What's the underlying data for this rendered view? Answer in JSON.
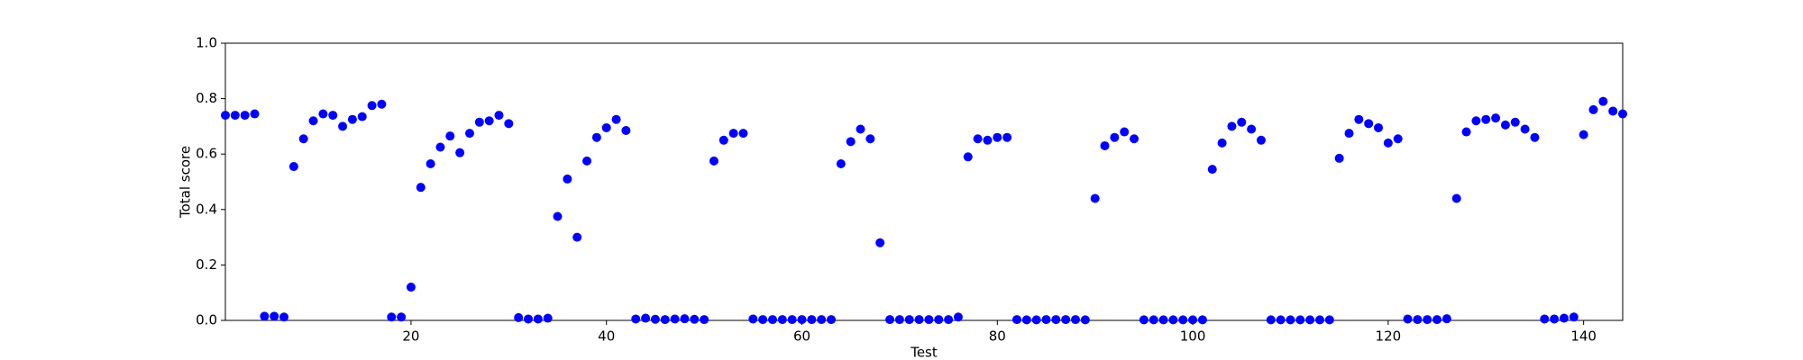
{
  "chart_data": {
    "type": "scatter",
    "x_label": "Test",
    "y_label": "Total score",
    "x": [
      1,
      2,
      3,
      4,
      5,
      6,
      7,
      8,
      9,
      10,
      11,
      12,
      13,
      14,
      15,
      16,
      17,
      18,
      19,
      20,
      21,
      22,
      23,
      24,
      25,
      26,
      27,
      28,
      29,
      30,
      31,
      32,
      33,
      34,
      35,
      36,
      37,
      38,
      39,
      40,
      41,
      42,
      43,
      44,
      45,
      46,
      47,
      48,
      49,
      50,
      51,
      52,
      53,
      54,
      55,
      56,
      57,
      58,
      59,
      60,
      61,
      62,
      63,
      64,
      65,
      66,
      67,
      68,
      69,
      70,
      71,
      72,
      73,
      74,
      75,
      76,
      77,
      78,
      79,
      80,
      81,
      82,
      83,
      84,
      85,
      86,
      87,
      88,
      89,
      90,
      91,
      92,
      93,
      94,
      95,
      96,
      97,
      98,
      99,
      100,
      101,
      102,
      103,
      104,
      105,
      106,
      107,
      108,
      109,
      110,
      111,
      112,
      113,
      114,
      115,
      116,
      117,
      118,
      119,
      120,
      121,
      122,
      123,
      124,
      125,
      126,
      127,
      128,
      129,
      130,
      131,
      132,
      133,
      134,
      135,
      136,
      137,
      138,
      139,
      140,
      141,
      142,
      143,
      144
    ],
    "values": [
      0.74,
      0.74,
      0.74,
      0.745,
      0.015,
      0.015,
      0.012,
      0.555,
      0.655,
      0.72,
      0.745,
      0.74,
      0.7,
      0.725,
      0.735,
      0.775,
      0.78,
      0.012,
      0.012,
      0.12,
      0.48,
      0.565,
      0.625,
      0.665,
      0.605,
      0.675,
      0.715,
      0.72,
      0.74,
      0.71,
      0.01,
      0.005,
      0.005,
      0.008,
      0.375,
      0.51,
      0.3,
      0.575,
      0.66,
      0.695,
      0.725,
      0.685,
      0.005,
      0.008,
      0.004,
      0.003,
      0.005,
      0.006,
      0.004,
      0.003,
      0.575,
      0.65,
      0.675,
      0.675,
      0.005,
      0.003,
      0.003,
      0.003,
      0.003,
      0.003,
      0.003,
      0.003,
      0.003,
      0.565,
      0.645,
      0.69,
      0.655,
      0.28,
      0.003,
      0.003,
      0.003,
      0.003,
      0.003,
      0.003,
      0.003,
      0.012,
      0.59,
      0.655,
      0.65,
      0.66,
      0.66,
      0.003,
      0.002,
      0.002,
      0.003,
      0.003,
      0.003,
      0.003,
      0.002,
      0.44,
      0.63,
      0.66,
      0.68,
      0.655,
      0.002,
      0.002,
      0.002,
      0.002,
      0.002,
      0.002,
      0.002,
      0.545,
      0.64,
      0.7,
      0.715,
      0.69,
      0.65,
      0.002,
      0.002,
      0.002,
      0.002,
      0.002,
      0.002,
      0.002,
      0.585,
      0.675,
      0.725,
      0.71,
      0.695,
      0.64,
      0.655,
      0.005,
      0.003,
      0.003,
      0.003,
      0.006,
      0.44,
      0.68,
      0.72,
      0.725,
      0.73,
      0.705,
      0.715,
      0.69,
      0.66,
      0.005,
      0.005,
      0.008,
      0.012,
      0.67,
      0.76,
      0.79,
      0.755,
      0.745
    ],
    "color": "#0000ff",
    "xlim": [
      1,
      144
    ],
    "xticks": [
      20,
      40,
      60,
      80,
      100,
      120,
      140
    ],
    "ylim": [
      0,
      1
    ],
    "yticks": [
      {
        "value": 0,
        "label": "0.0"
      },
      0.2,
      0.4,
      0.6,
      0.8,
      {
        "value": 1,
        "label": "1.0"
      }
    ],
    "grid": false
  }
}
